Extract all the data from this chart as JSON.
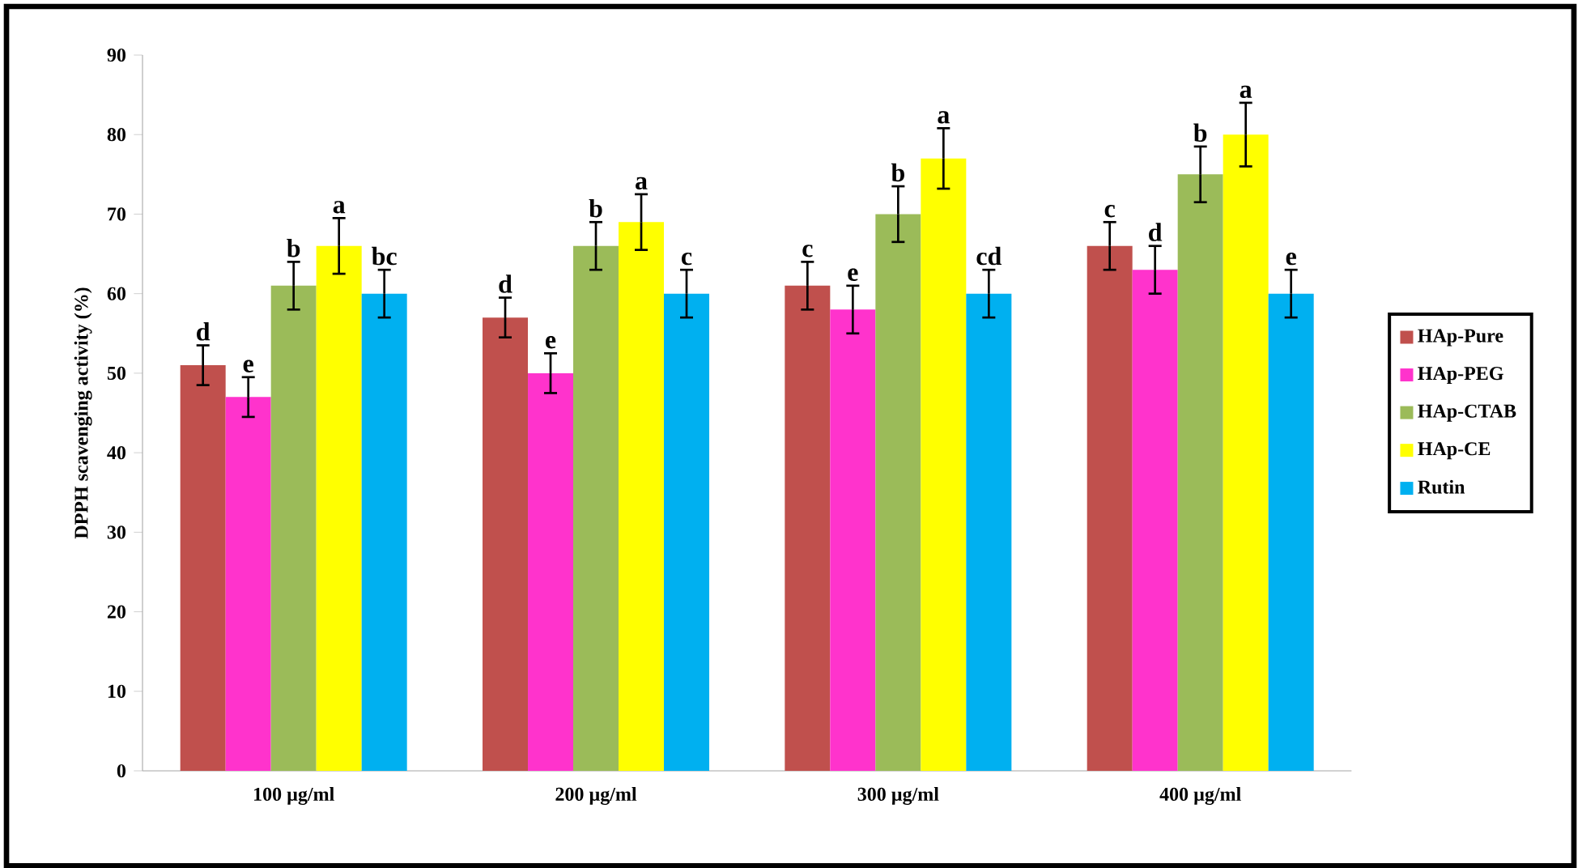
{
  "chart_data": {
    "type": "bar",
    "ylabel": "DPPH scavenging activity (%)",
    "categories": [
      "100 µg/ml",
      "200 µg/ml",
      "300 µg/ml",
      "400 µg/ml"
    ],
    "series": [
      {
        "name": "HAp-Pure",
        "color": "#c0504d",
        "values": [
          51,
          57,
          61,
          66
        ],
        "errors": [
          2.5,
          2.5,
          3,
          3
        ],
        "value_labels": [
          "d",
          "d",
          "c",
          "c"
        ]
      },
      {
        "name": "HAp-PEG",
        "color": "#ff33cc",
        "values": [
          47,
          50,
          58,
          63
        ],
        "errors": [
          2.5,
          2.5,
          3,
          3
        ],
        "value_labels": [
          "e",
          "e",
          "e",
          "d"
        ]
      },
      {
        "name": "HAp-CTAB",
        "color": "#9bbb59",
        "values": [
          61,
          66,
          70,
          75
        ],
        "errors": [
          3,
          3,
          3.5,
          3.5
        ],
        "value_labels": [
          "b",
          "b",
          "b",
          "b"
        ]
      },
      {
        "name": "HAp-CE",
        "color": "#ffff00",
        "values": [
          66,
          69,
          77,
          80
        ],
        "errors": [
          3.5,
          3.5,
          3.8,
          4
        ],
        "value_labels": [
          "a",
          "a",
          "a",
          "a"
        ]
      },
      {
        "name": "Rutin",
        "color": "#00b0f0",
        "values": [
          60,
          60,
          60,
          60
        ],
        "errors": [
          3,
          3,
          3,
          3
        ],
        "value_labels": [
          "bc",
          "c",
          "cd",
          "e"
        ]
      }
    ],
    "ylim": [
      0,
      90
    ],
    "yticks": [
      0,
      10,
      20,
      30,
      40,
      50,
      60,
      70,
      80,
      90
    ],
    "legend": "right"
  }
}
